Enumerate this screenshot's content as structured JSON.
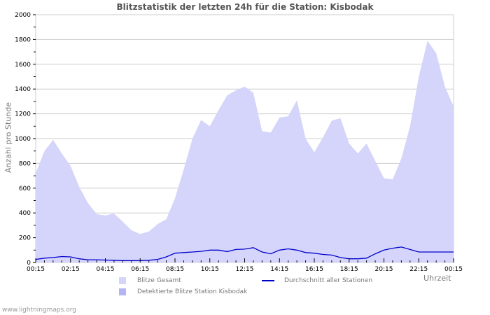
{
  "chart_data": {
    "type": "area",
    "title": "Blitzstatistik der letzten 24h für die Station: Kisbodak",
    "xlabel": "Uhrzeit",
    "ylabel": "Anzahl pro Stunde",
    "ylim": [
      0,
      2000
    ],
    "yticks": [
      0,
      200,
      400,
      600,
      800,
      1000,
      1200,
      1400,
      1600,
      1800,
      2000
    ],
    "xtick_labels": [
      "00:15",
      "02:15",
      "04:15",
      "06:15",
      "08:15",
      "10:15",
      "12:15",
      "14:15",
      "16:15",
      "18:15",
      "20:15",
      "22:15",
      "00:15"
    ],
    "grid": true,
    "legend_position": "bottom",
    "x_hours": [
      0,
      0.5,
      1,
      1.5,
      2,
      2.5,
      3,
      3.5,
      4,
      4.5,
      5,
      5.5,
      6,
      6.5,
      7,
      7.5,
      8,
      8.5,
      9,
      9.5,
      10,
      10.5,
      11,
      11.5,
      12,
      12.5,
      13,
      13.5,
      14,
      14.5,
      15,
      15.5,
      16,
      16.5,
      17,
      17.5,
      18,
      18.5,
      19,
      19.5,
      20,
      20.5,
      21,
      21.5,
      22,
      22.5,
      23,
      23.5,
      24
    ],
    "series": [
      {
        "name": "Blitze Gesamt",
        "color": "#d5d5fb",
        "values": [
          720,
          900,
          990,
          880,
          780,
          610,
          480,
          390,
          380,
          395,
          330,
          260,
          230,
          250,
          310,
          350,
          520,
          750,
          1000,
          1150,
          1100,
          1230,
          1350,
          1390,
          1420,
          1370,
          1060,
          1050,
          1170,
          1180,
          1310,
          1000,
          890,
          1010,
          1145,
          1165,
          960,
          880,
          960,
          820,
          680,
          670,
          840,
          1100,
          1500,
          1790,
          1690,
          1420,
          1260
        ]
      },
      {
        "name": "Detektierte Blitze Station Kisbodak",
        "color": "#b3b3f5",
        "values": [
          0,
          0,
          0,
          0,
          0,
          0,
          0,
          0,
          0,
          0,
          0,
          0,
          0,
          0,
          0,
          0,
          0,
          0,
          0,
          0,
          0,
          0,
          0,
          0,
          0,
          0,
          0,
          0,
          0,
          0,
          0,
          0,
          0,
          0,
          0,
          0,
          0,
          0,
          0,
          0,
          0,
          0,
          0,
          0,
          0,
          0,
          0,
          0,
          0
        ]
      },
      {
        "name": "Durchschnitt aller Stationen",
        "color": "#0000cc",
        "type": "line",
        "values": [
          25,
          35,
          40,
          48,
          45,
          30,
          22,
          22,
          20,
          18,
          15,
          15,
          15,
          18,
          25,
          45,
          75,
          80,
          85,
          90,
          100,
          100,
          88,
          105,
          108,
          120,
          85,
          70,
          100,
          110,
          100,
          80,
          75,
          65,
          60,
          40,
          30,
          30,
          35,
          70,
          100,
          115,
          125,
          105,
          85,
          85,
          85,
          85,
          85
        ]
      }
    ]
  },
  "footer": "www.lightningmaps.org"
}
